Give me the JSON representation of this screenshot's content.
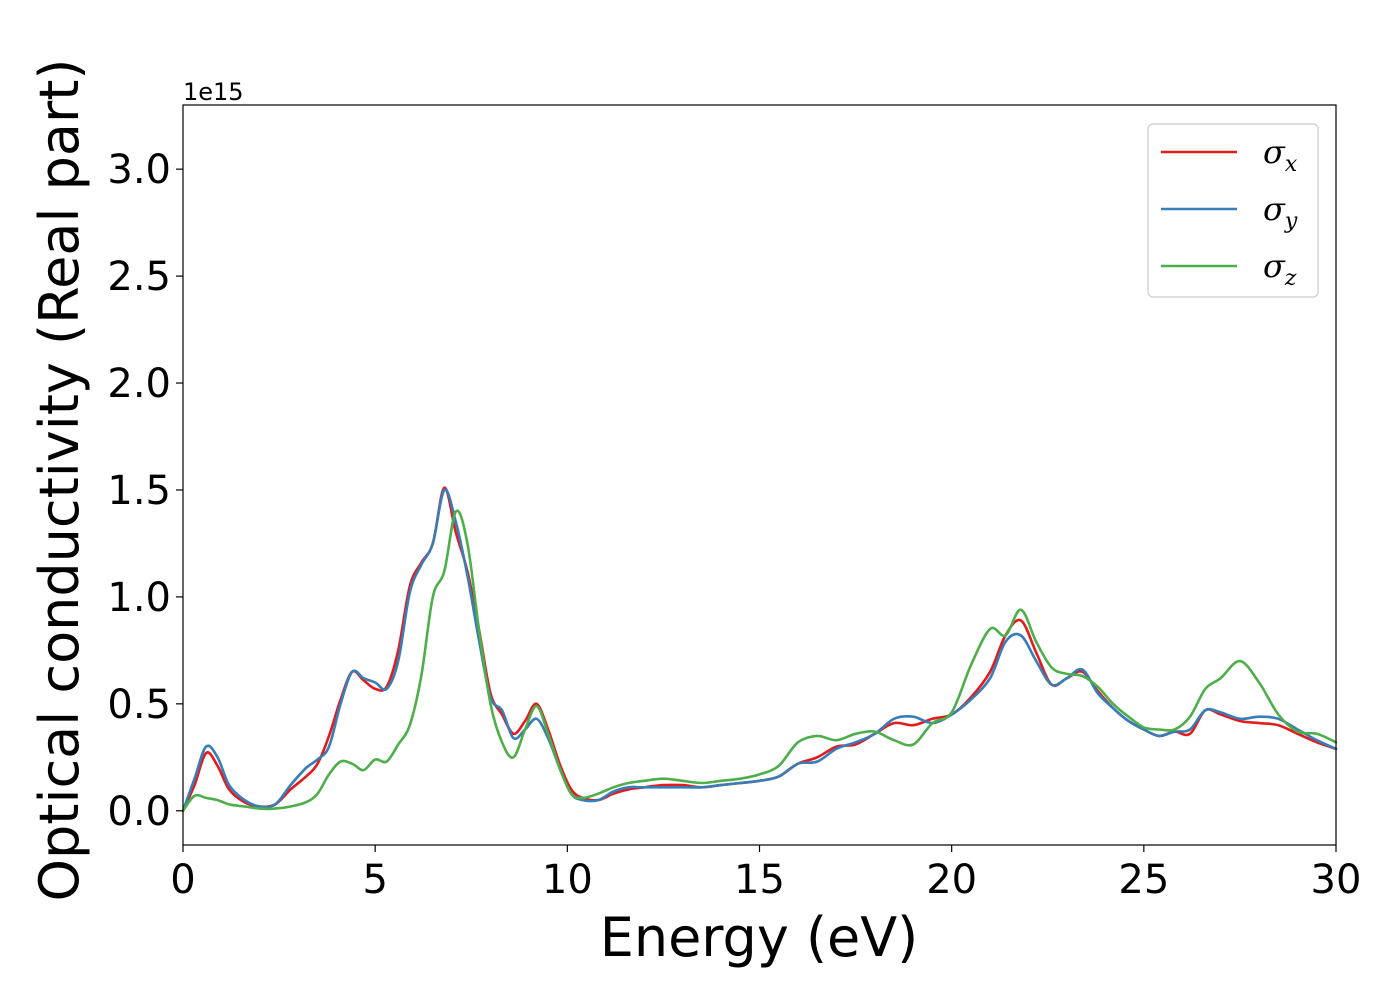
{
  "chart_data": {
    "type": "line",
    "title": "",
    "xlabel": "Energy (eV)",
    "ylabel": "Optical conductivity (Real part)",
    "y_offset_label": "1e15",
    "xlim": [
      0,
      30
    ],
    "ylim": [
      -0.16,
      3.3
    ],
    "xticks": [
      0,
      5,
      10,
      15,
      20,
      25,
      30
    ],
    "xtick_labels": [
      "0",
      "5",
      "10",
      "15",
      "20",
      "25",
      "30"
    ],
    "yticks": [
      0.0,
      0.5,
      1.0,
      1.5,
      2.0,
      2.5,
      3.0
    ],
    "ytick_labels": [
      "0.0",
      "0.5",
      "1.0",
      "1.5",
      "2.0",
      "2.5",
      "3.0"
    ],
    "grid": false,
    "legend_position": "top-right",
    "series": [
      {
        "name": "σx",
        "symbol": "σ",
        "subscript": "x",
        "color": "#e41a1c",
        "x": [
          0,
          0.3,
          0.6,
          0.9,
          1.2,
          1.6,
          2.0,
          2.4,
          2.8,
          3.2,
          3.5,
          3.8,
          4.1,
          4.4,
          4.7,
          5.0,
          5.3,
          5.6,
          5.9,
          6.2,
          6.5,
          6.8,
          7.1,
          7.4,
          7.7,
          8.0,
          8.3,
          8.6,
          8.9,
          9.2,
          9.5,
          9.8,
          10.1,
          10.4,
          10.8,
          11.2,
          11.6,
          12.0,
          12.5,
          13.0,
          13.5,
          14.0,
          14.5,
          15.0,
          15.5,
          16.0,
          16.5,
          17.0,
          17.5,
          18.0,
          18.5,
          19.0,
          19.5,
          20.0,
          20.5,
          21.0,
          21.4,
          21.8,
          22.2,
          22.6,
          23.0,
          23.4,
          23.8,
          24.2,
          24.6,
          25.0,
          25.4,
          25.8,
          26.2,
          26.6,
          27.0,
          27.5,
          28.0,
          28.5,
          29.0,
          29.5,
          30.0
        ],
        "values": [
          0.0,
          0.12,
          0.27,
          0.21,
          0.1,
          0.04,
          0.02,
          0.03,
          0.1,
          0.16,
          0.22,
          0.35,
          0.52,
          0.65,
          0.61,
          0.57,
          0.58,
          0.75,
          1.05,
          1.16,
          1.25,
          1.51,
          1.3,
          1.12,
          0.85,
          0.55,
          0.45,
          0.36,
          0.42,
          0.5,
          0.38,
          0.22,
          0.1,
          0.06,
          0.05,
          0.08,
          0.1,
          0.11,
          0.12,
          0.12,
          0.11,
          0.12,
          0.13,
          0.14,
          0.16,
          0.22,
          0.25,
          0.3,
          0.31,
          0.36,
          0.41,
          0.4,
          0.43,
          0.45,
          0.53,
          0.65,
          0.82,
          0.89,
          0.74,
          0.59,
          0.62,
          0.65,
          0.56,
          0.48,
          0.42,
          0.38,
          0.35,
          0.37,
          0.36,
          0.47,
          0.45,
          0.42,
          0.41,
          0.4,
          0.36,
          0.32,
          0.29
        ]
      },
      {
        "name": "σy",
        "symbol": "σ",
        "subscript": "y",
        "color": "#377eb8",
        "x": [
          0,
          0.3,
          0.6,
          0.9,
          1.2,
          1.6,
          2.0,
          2.4,
          2.8,
          3.2,
          3.5,
          3.8,
          4.1,
          4.4,
          4.7,
          5.0,
          5.3,
          5.6,
          5.9,
          6.2,
          6.5,
          6.8,
          7.1,
          7.4,
          7.7,
          8.0,
          8.3,
          8.6,
          8.9,
          9.2,
          9.5,
          9.8,
          10.1,
          10.4,
          10.8,
          11.2,
          11.6,
          12.0,
          12.5,
          13.0,
          13.5,
          14.0,
          14.5,
          15.0,
          15.5,
          16.0,
          16.5,
          17.0,
          17.5,
          18.0,
          18.5,
          19.0,
          19.5,
          20.0,
          20.5,
          21.0,
          21.4,
          21.8,
          22.2,
          22.6,
          23.0,
          23.4,
          23.8,
          24.2,
          24.6,
          25.0,
          25.4,
          25.8,
          26.2,
          26.6,
          27.0,
          27.5,
          28.0,
          28.5,
          29.0,
          29.5,
          30.0
        ],
        "values": [
          0.0,
          0.15,
          0.3,
          0.25,
          0.12,
          0.05,
          0.02,
          0.03,
          0.12,
          0.2,
          0.24,
          0.3,
          0.5,
          0.65,
          0.62,
          0.6,
          0.57,
          0.7,
          1.02,
          1.15,
          1.25,
          1.5,
          1.35,
          1.1,
          0.8,
          0.53,
          0.47,
          0.34,
          0.38,
          0.43,
          0.34,
          0.2,
          0.08,
          0.05,
          0.05,
          0.09,
          0.11,
          0.11,
          0.11,
          0.11,
          0.11,
          0.12,
          0.13,
          0.14,
          0.16,
          0.22,
          0.23,
          0.29,
          0.32,
          0.36,
          0.43,
          0.44,
          0.41,
          0.45,
          0.52,
          0.62,
          0.79,
          0.82,
          0.7,
          0.59,
          0.62,
          0.66,
          0.55,
          0.48,
          0.42,
          0.38,
          0.35,
          0.37,
          0.38,
          0.47,
          0.46,
          0.43,
          0.44,
          0.43,
          0.38,
          0.33,
          0.29
        ]
      },
      {
        "name": "σz",
        "symbol": "σ",
        "subscript": "z",
        "color": "#4daf4a",
        "x": [
          0,
          0.3,
          0.6,
          0.9,
          1.2,
          1.6,
          2.0,
          2.4,
          2.8,
          3.2,
          3.5,
          3.8,
          4.1,
          4.4,
          4.7,
          5.0,
          5.3,
          5.6,
          5.9,
          6.2,
          6.5,
          6.8,
          7.1,
          7.4,
          7.7,
          8.0,
          8.3,
          8.6,
          8.9,
          9.2,
          9.5,
          9.8,
          10.1,
          10.4,
          10.8,
          11.2,
          11.6,
          12.0,
          12.5,
          13.0,
          13.5,
          14.0,
          14.5,
          15.0,
          15.5,
          16.0,
          16.5,
          17.0,
          17.5,
          18.0,
          18.5,
          19.0,
          19.5,
          20.0,
          20.5,
          21.0,
          21.4,
          21.8,
          22.2,
          22.6,
          23.0,
          23.4,
          23.8,
          24.2,
          24.6,
          25.0,
          25.4,
          25.8,
          26.2,
          26.6,
          27.0,
          27.5,
          28.0,
          28.5,
          29.0,
          29.5,
          30.0
        ],
        "values": [
          0.0,
          0.07,
          0.06,
          0.05,
          0.03,
          0.02,
          0.01,
          0.01,
          0.02,
          0.04,
          0.08,
          0.17,
          0.23,
          0.22,
          0.19,
          0.24,
          0.23,
          0.31,
          0.4,
          0.63,
          1.0,
          1.12,
          1.4,
          1.25,
          0.85,
          0.5,
          0.32,
          0.25,
          0.38,
          0.49,
          0.36,
          0.2,
          0.08,
          0.06,
          0.08,
          0.11,
          0.13,
          0.14,
          0.15,
          0.14,
          0.13,
          0.14,
          0.15,
          0.17,
          0.21,
          0.32,
          0.35,
          0.33,
          0.36,
          0.37,
          0.33,
          0.31,
          0.41,
          0.46,
          0.68,
          0.85,
          0.82,
          0.94,
          0.79,
          0.67,
          0.64,
          0.63,
          0.58,
          0.5,
          0.44,
          0.39,
          0.38,
          0.38,
          0.44,
          0.57,
          0.62,
          0.7,
          0.6,
          0.45,
          0.37,
          0.36,
          0.32
        ]
      }
    ]
  }
}
